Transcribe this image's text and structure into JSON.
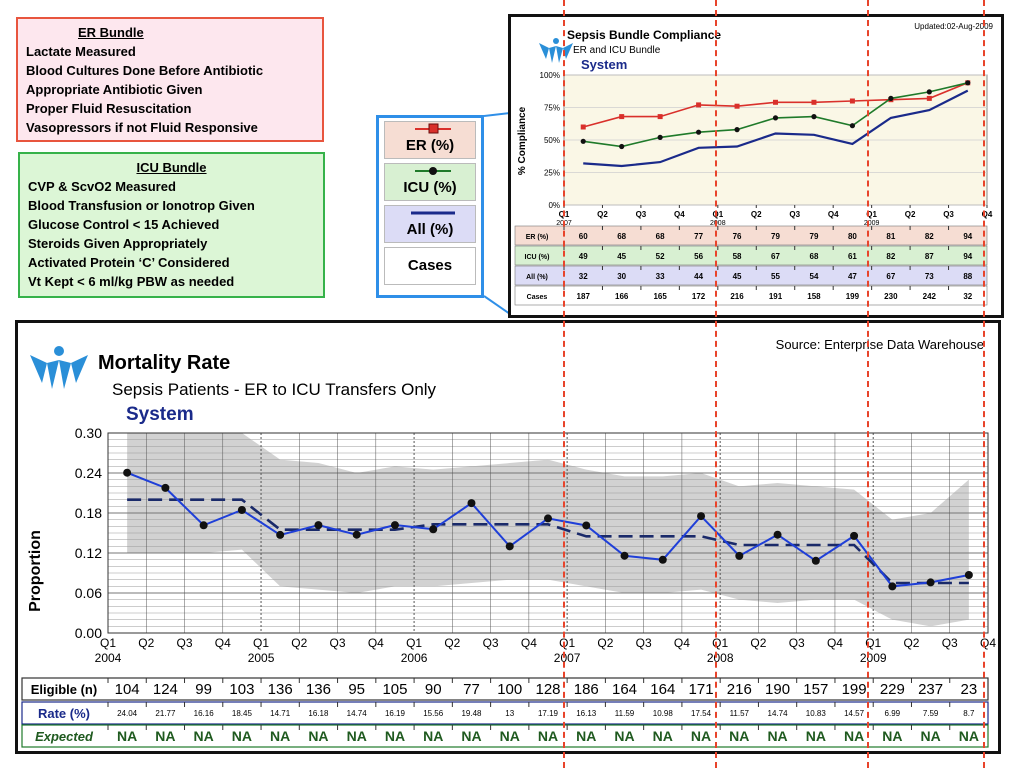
{
  "er_bundle": {
    "title": "ER Bundle",
    "items": [
      "Lactate Measured",
      "Blood Cultures Done Before Antibiotic",
      "Appropriate Antibiotic Given",
      "Proper Fluid Resuscitation",
      "Vasopressors if not Fluid Responsive"
    ]
  },
  "icu_bundle": {
    "title": "ICU Bundle",
    "items": [
      "CVP & ScvO2 Measured",
      "Blood Transfusion or Ionotrop Given",
      "Glucose Control < 15 Achieved",
      "Steroids Given Appropriately",
      "Activated Protein ‘C’ Considered",
      "Vt Kept < 6 ml/kg PBW as needed"
    ]
  },
  "legend": {
    "items": [
      "ER (%)",
      "ICU (%)",
      "All (%)",
      "Cases"
    ]
  },
  "colors": {
    "er": "#d9302b",
    "icu": "#1f7a2a",
    "all": "#1a2a8a",
    "rate": "#1f3fd8",
    "highlight": "#e8442b"
  },
  "chart_data": [
    {
      "type": "line",
      "title": "Sepsis Bundle Compliance",
      "subtitle": "ER and ICU Bundle",
      "region": "System",
      "updated": "Updated:02-Aug-2009",
      "ylabel": "% Compliance",
      "ylim": [
        0,
        100
      ],
      "yticks": [
        "0%",
        "25%",
        "50%",
        "75%",
        "100%"
      ],
      "x_ticks": [
        "Q1",
        "Q2",
        "Q3",
        "Q4",
        "Q1",
        "Q2",
        "Q3",
        "Q4",
        "Q1",
        "Q2",
        "Q3",
        "Q4"
      ],
      "year_labels": [
        "2007",
        "2008",
        "2009"
      ],
      "categories": [
        "2007 Q1",
        "2007 Q2",
        "2007 Q3",
        "2007 Q4",
        "2008 Q1",
        "2008 Q2",
        "2008 Q3",
        "2008 Q4",
        "2009 Q1",
        "2009 Q2",
        "2009 Q3"
      ],
      "series": [
        {
          "name": "ER (%)",
          "values": [
            60,
            68,
            68,
            77,
            76,
            79,
            79,
            80,
            81,
            82,
            94
          ]
        },
        {
          "name": "ICU (%)",
          "values": [
            49,
            45,
            52,
            56,
            58,
            67,
            68,
            61,
            82,
            87,
            94
          ]
        },
        {
          "name": "All (%)",
          "values": [
            32,
            30,
            33,
            44,
            45,
            55,
            54,
            47,
            67,
            73,
            88
          ]
        }
      ],
      "table": {
        "row_labels": [
          "ER (%)",
          "ICU (%)",
          "All (%)",
          "Cases"
        ],
        "cases": [
          187,
          166,
          165,
          172,
          216,
          191,
          158,
          199,
          230,
          242,
          32
        ]
      }
    },
    {
      "type": "line",
      "title": "Mortality Rate",
      "subtitle": "Sepsis Patients - ER to ICU Transfers Only",
      "region": "System",
      "source": "Source: Enterprise Data Warehouse",
      "ylabel": "Proportion",
      "ylim": [
        0,
        0.3
      ],
      "yticks": [
        "0.00",
        "0.06",
        "0.12",
        "0.18",
        "0.24",
        "0.30"
      ],
      "x_ticks": [
        "Q1",
        "Q2",
        "Q3",
        "Q4",
        "Q1",
        "Q2",
        "Q3",
        "Q4",
        "Q1",
        "Q2",
        "Q3",
        "Q4",
        "Q1",
        "Q2",
        "Q3",
        "Q4",
        "Q1",
        "Q2",
        "Q3",
        "Q4",
        "Q1",
        "Q2",
        "Q3",
        "Q4"
      ],
      "year_labels": [
        "2004",
        "2005",
        "2006",
        "2007",
        "2008",
        "2009"
      ],
      "categories": [
        "2004 Q1",
        "2004 Q2",
        "2004 Q3",
        "2004 Q4",
        "2005 Q1",
        "2005 Q2",
        "2005 Q3",
        "2005 Q4",
        "2006 Q1",
        "2006 Q2",
        "2006 Q3",
        "2006 Q4",
        "2007 Q1",
        "2007 Q2",
        "2007 Q3",
        "2007 Q4",
        "2008 Q1",
        "2008 Q2",
        "2008 Q3",
        "2008 Q4",
        "2009 Q1",
        "2009 Q2",
        "2009 Q3"
      ],
      "rate": [
        0.2404,
        0.2177,
        0.1616,
        0.1845,
        0.1471,
        0.1618,
        0.1474,
        0.1619,
        0.1556,
        0.1948,
        0.13,
        0.1719,
        0.1613,
        0.1159,
        0.1098,
        0.1754,
        0.1157,
        0.1474,
        0.1083,
        0.1457,
        0.0699,
        0.0759,
        0.087
      ],
      "expected_baseline": [
        0.2,
        0.2,
        0.2,
        0.2,
        0.155,
        0.155,
        0.155,
        0.155,
        0.163,
        0.163,
        0.163,
        0.163,
        0.145,
        0.145,
        0.145,
        0.145,
        0.132,
        0.132,
        0.132,
        0.132,
        0.075,
        0.075,
        0.075
      ],
      "band_upper": [
        0.3,
        0.3,
        0.3,
        0.3,
        0.26,
        0.255,
        0.24,
        0.25,
        0.245,
        0.25,
        0.255,
        0.26,
        0.245,
        0.235,
        0.235,
        0.24,
        0.22,
        0.225,
        0.22,
        0.215,
        0.17,
        0.18,
        0.23
      ],
      "band_lower": [
        0.12,
        0.12,
        0.12,
        0.125,
        0.07,
        0.065,
        0.06,
        0.07,
        0.07,
        0.075,
        0.08,
        0.08,
        0.07,
        0.06,
        0.06,
        0.065,
        0.05,
        0.045,
        0.05,
        0.05,
        0.02,
        0.01,
        0.02
      ],
      "table": {
        "row_labels": [
          "Eligible (n)",
          "Rate (%)",
          "Expected"
        ],
        "eligible": [
          104,
          124,
          99,
          103,
          136,
          136,
          95,
          105,
          90,
          77,
          100,
          128,
          186,
          164,
          164,
          171,
          216,
          190,
          157,
          199,
          229,
          237,
          23
        ],
        "rate_pct": [
          "24.04",
          "21.77",
          "16.16",
          "18.45",
          "14.71",
          "16.18",
          "14.74",
          "16.19",
          "15.56",
          "19.48",
          "13",
          "17.19",
          "16.13",
          "11.59",
          "10.98",
          "17.54",
          "11.57",
          "14.74",
          "10.83",
          "14.57",
          "6.99",
          "7.59",
          "8.7"
        ],
        "expected": [
          "NA",
          "NA",
          "NA",
          "NA",
          "NA",
          "NA",
          "NA",
          "NA",
          "NA",
          "NA",
          "NA",
          "NA",
          "NA",
          "NA",
          "NA",
          "NA",
          "NA",
          "NA",
          "NA",
          "NA",
          "NA",
          "NA",
          "NA"
        ]
      }
    }
  ]
}
